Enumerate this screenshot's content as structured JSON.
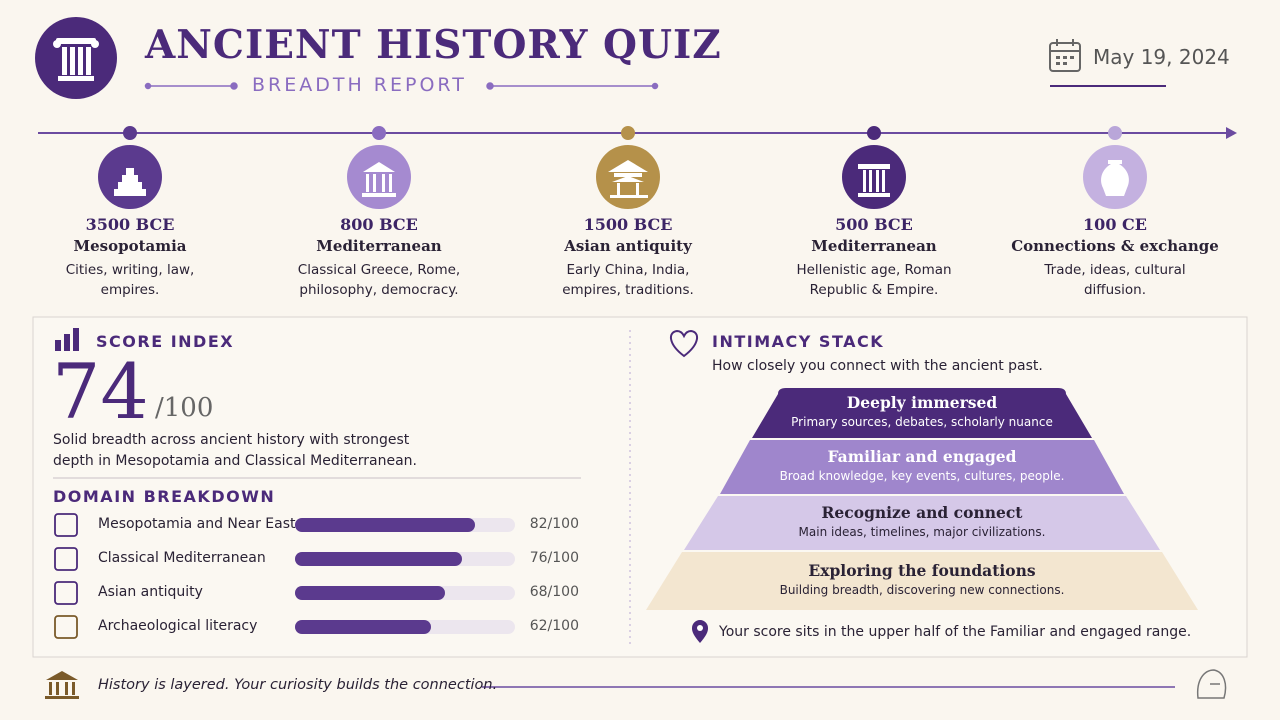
{
  "header": {
    "title": "ANCIENT HISTORY QUIZ",
    "subtitle": "BREADTH REPORT",
    "date": "May 19, 2024"
  },
  "timeline": [
    {
      "year": "3500 BCE",
      "region": "Mesopotamia",
      "description": "Cities, writing, law, empires."
    },
    {
      "year": "800 BCE",
      "region": "Mediterranean",
      "description": "Classical Greece, Rome, philosophy, democracy."
    },
    {
      "year": "1500 BCE",
      "region": "Asian antiquity",
      "description": "Early China, India, empires, traditions."
    },
    {
      "year": "500 BCE",
      "region": "Mediterranean",
      "description": "Hellenistic age, Roman Republic & Empire."
    },
    {
      "year": "100 CE",
      "region": "Connections & exchange",
      "description": "Trade, ideas, cultural diffusion."
    }
  ],
  "score": {
    "title": "SCORE INDEX",
    "value": 74,
    "max_label": "/100",
    "summary": "Solid breadth across ancient history with strongest depth in Mesopotamia and Classical Mediterranean."
  },
  "domains": {
    "title": "DOMAIN BREAKDOWN",
    "xlim": [
      0,
      100
    ],
    "items": [
      {
        "name": "Mesopotamia and Near East",
        "value": 82,
        "value_label": "82/100"
      },
      {
        "name": "Classical Mediterranean",
        "value": 76,
        "value_label": "76/100"
      },
      {
        "name": "Asian antiquity",
        "value": 68,
        "value_label": "68/100"
      },
      {
        "name": "Archaeological literacy",
        "value": 62,
        "value_label": "62/100"
      }
    ]
  },
  "stack": {
    "title": "INTIMACY STACK",
    "subtitle": "How closely you connect with the ancient past.",
    "layers": [
      {
        "title": "Deeply immersed",
        "detail": "Primary sources, debates, scholarly nuance"
      },
      {
        "title": "Familiar and engaged",
        "detail": "Broad knowledge, key events, cultures, people."
      },
      {
        "title": "Recognize and connect",
        "detail": "Main ideas, timelines, major civilizations."
      },
      {
        "title": "Exploring the foundations",
        "detail": "Building breadth, discovering new connections."
      }
    ],
    "note": "Your score sits in the upper half of the Familiar and engaged range."
  },
  "footer": {
    "tagline": "History is layered. Your curiosity builds the connection."
  }
}
